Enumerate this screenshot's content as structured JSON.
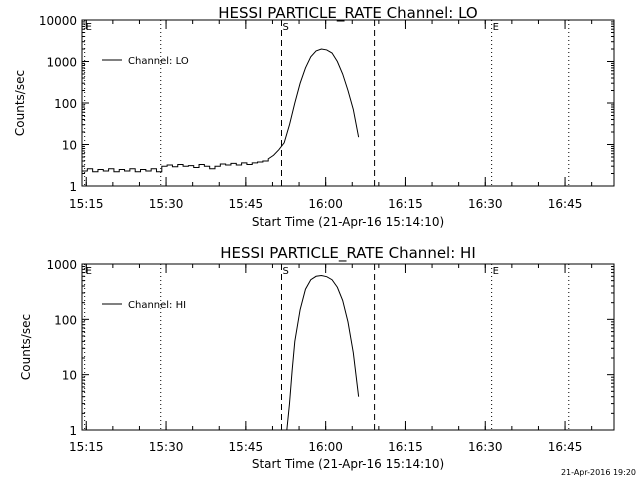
{
  "footer_timestamp": "21-Apr-2016 19:20",
  "chart_data": [
    {
      "type": "line",
      "title": "HESSI PARTICLE_RATE Channel: LO",
      "xlabel": "Start Time (21-Apr-16 15:14:10)",
      "ylabel": "Counts/sec",
      "yscale": "log",
      "xlim_minutes": [
        0,
        100
      ],
      "ylim": [
        1,
        10000
      ],
      "x_tick_labels": [
        "15:15",
        "15:30",
        "15:45",
        "16:00",
        "16:15",
        "16:30",
        "16:45"
      ],
      "x_tick_minutes": [
        0.8,
        15.8,
        30.8,
        45.8,
        60.8,
        75.8,
        90.8
      ],
      "y_tick_labels": [
        "1",
        "10",
        "100",
        "1000",
        "10000"
      ],
      "y_tick_values": [
        1,
        10,
        100,
        1000,
        10000
      ],
      "legend": "top-left",
      "markers": [
        {
          "label": "E",
          "minute": 0.5,
          "style": "dotted"
        },
        {
          "label": "",
          "minute": 14.8,
          "style": "dotted"
        },
        {
          "label": "S",
          "minute": 37.5,
          "style": "dashed"
        },
        {
          "label": "",
          "minute": 55.0,
          "style": "dashed"
        },
        {
          "label": "E",
          "minute": 77.0,
          "style": "dotted"
        },
        {
          "label": "",
          "minute": 91.5,
          "style": "dotted"
        }
      ],
      "series": [
        {
          "name": "Channel: LO",
          "x": [
            0,
            1,
            2,
            3,
            4,
            5,
            6,
            7,
            8,
            9,
            10,
            11,
            12,
            13,
            14,
            15,
            16,
            17,
            18,
            19,
            20,
            21,
            22,
            23,
            24,
            25,
            26,
            27,
            28,
            29,
            30,
            31,
            32,
            33,
            34,
            35,
            36,
            37,
            38,
            39,
            40,
            41,
            42,
            43,
            44,
            45,
            46,
            47,
            48,
            49,
            50,
            51,
            52
          ],
          "y": [
            2.3,
            2.6,
            2.2,
            2.5,
            2.3,
            2.6,
            2.2,
            2.5,
            2.3,
            2.6,
            2.2,
            2.5,
            2.3,
            2.6,
            2.2,
            3.0,
            3.2,
            2.9,
            3.3,
            3.0,
            3.1,
            2.8,
            3.3,
            3.0,
            2.6,
            3.0,
            3.4,
            3.2,
            3.5,
            3.2,
            3.6,
            3.3,
            3.6,
            3.8,
            4.0,
            4.5,
            5.5,
            7.5,
            11,
            30,
            100,
            300,
            700,
            1300,
            1800,
            2000,
            1900,
            1600,
            1000,
            500,
            200,
            70,
            15
          ]
        }
      ]
    },
    {
      "type": "line",
      "title": "HESSI PARTICLE_RATE Channel: HI",
      "xlabel": "Start Time (21-Apr-16 15:14:10)",
      "ylabel": "Counts/sec",
      "yscale": "log",
      "xlim_minutes": [
        0,
        100
      ],
      "ylim": [
        1,
        1000
      ],
      "x_tick_labels": [
        "15:15",
        "15:30",
        "15:45",
        "16:00",
        "16:15",
        "16:30",
        "16:45"
      ],
      "x_tick_minutes": [
        0.8,
        15.8,
        30.8,
        45.8,
        60.8,
        75.8,
        90.8
      ],
      "y_tick_labels": [
        "1",
        "10",
        "100",
        "1000"
      ],
      "y_tick_values": [
        1,
        10,
        100,
        1000
      ],
      "legend": "top-left",
      "markers": [
        {
          "label": "E",
          "minute": 0.5,
          "style": "dotted"
        },
        {
          "label": "",
          "minute": 14.8,
          "style": "dotted"
        },
        {
          "label": "S",
          "minute": 37.5,
          "style": "dashed"
        },
        {
          "label": "",
          "minute": 55.0,
          "style": "dashed"
        },
        {
          "label": "E",
          "minute": 77.0,
          "style": "dotted"
        },
        {
          "label": "",
          "minute": 91.5,
          "style": "dotted"
        }
      ],
      "series": [
        {
          "name": "Channel: HI",
          "x": [
            38.5,
            39,
            39.5,
            40,
            41,
            42,
            43,
            44,
            45,
            46,
            47,
            48,
            49,
            50,
            51,
            52
          ],
          "y": [
            1,
            3,
            12,
            40,
            150,
            350,
            520,
            600,
            620,
            590,
            520,
            380,
            220,
            90,
            25,
            4
          ]
        }
      ]
    }
  ]
}
